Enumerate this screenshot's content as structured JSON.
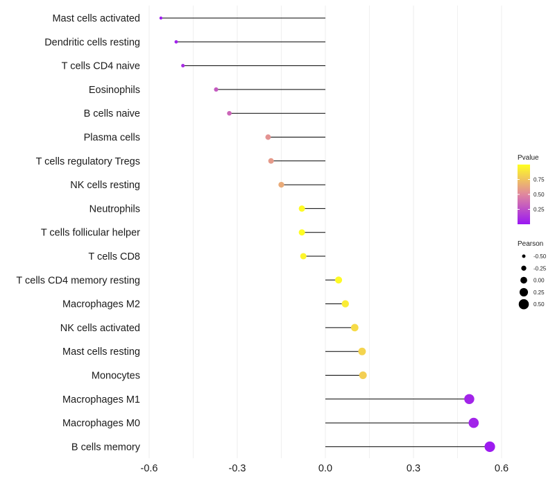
{
  "chart_data": {
    "type": "lollipop",
    "title": "",
    "xlabel": "",
    "ylabel": "",
    "xlim": [
      -0.6,
      0.6
    ],
    "x_ticks": [
      -0.6,
      -0.3,
      0.0,
      0.3,
      0.6
    ],
    "x_tick_labels": [
      "-0.6",
      "-0.3",
      "0.0",
      "0.3",
      "0.6"
    ],
    "grid": true,
    "categories": [
      "Mast cells activated",
      "Dendritic cells resting",
      "T cells CD4 naive",
      "Eosinophils",
      "B cells naive",
      "Plasma cells",
      "T cells regulatory  Tregs",
      "NK cells resting",
      "Neutrophils",
      "T cells follicular helper",
      "T cells CD8",
      "T cells CD4 memory resting",
      "Macrophages M2",
      "NK cells activated",
      "Mast cells resting",
      "Monocytes",
      "Macrophages M1",
      "Macrophages M0",
      "B cells memory"
    ],
    "pearson": [
      -0.56,
      -0.508,
      -0.485,
      -0.372,
      -0.327,
      -0.195,
      -0.185,
      -0.15,
      -0.08,
      -0.08,
      -0.075,
      0.045,
      0.068,
      0.1,
      0.125,
      0.128,
      0.49,
      0.505,
      0.56
    ],
    "pvalue": [
      0.02,
      0.05,
      0.1,
      0.3,
      0.35,
      0.55,
      0.58,
      0.65,
      0.98,
      0.99,
      0.96,
      0.98,
      0.92,
      0.85,
      0.82,
      0.8,
      0.06,
      0.06,
      0.02
    ],
    "legend_pvalue": {
      "title": "Pvalue",
      "ticks": [
        0.25,
        0.5,
        0.75
      ],
      "tick_labels": [
        "0.25",
        "0.50",
        "0.75"
      ],
      "range": [
        0.0,
        1.0
      ],
      "color_low": "#9a17f3",
      "color_mid": "#e0879e",
      "color_high": "#ffff21"
    },
    "legend_pearson": {
      "title": "Pearson",
      "values": [
        -0.5,
        -0.25,
        0.0,
        0.25,
        0.5
      ],
      "labels": [
        "-0.50",
        "-0.25",
        "0.00",
        "0.25",
        "0.50"
      ]
    },
    "legend_position": "right"
  },
  "colors": {
    "segment": "#000000",
    "gridline": "#ececec",
    "text": "#1a1a1a"
  }
}
